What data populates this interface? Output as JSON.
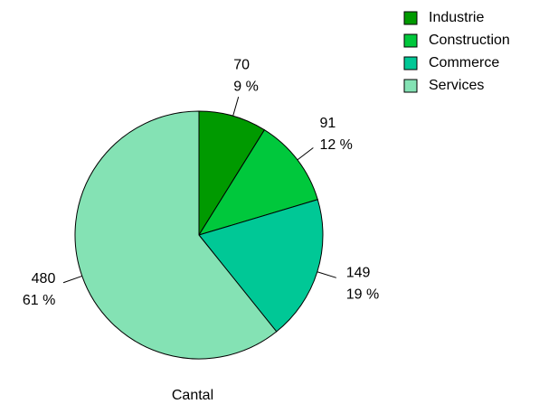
{
  "chart_data": {
    "type": "pie",
    "title": "Cantal",
    "categories": [
      "Industrie",
      "Construction",
      "Commerce",
      "Services"
    ],
    "values": [
      70,
      91,
      149,
      480
    ],
    "percent_labels": [
      "9 %",
      "12 %",
      "19 %",
      "61 %"
    ],
    "colors": [
      "#009a00",
      "#00c83c",
      "#00c896",
      "#84e2b4"
    ],
    "legend": "top-right"
  }
}
